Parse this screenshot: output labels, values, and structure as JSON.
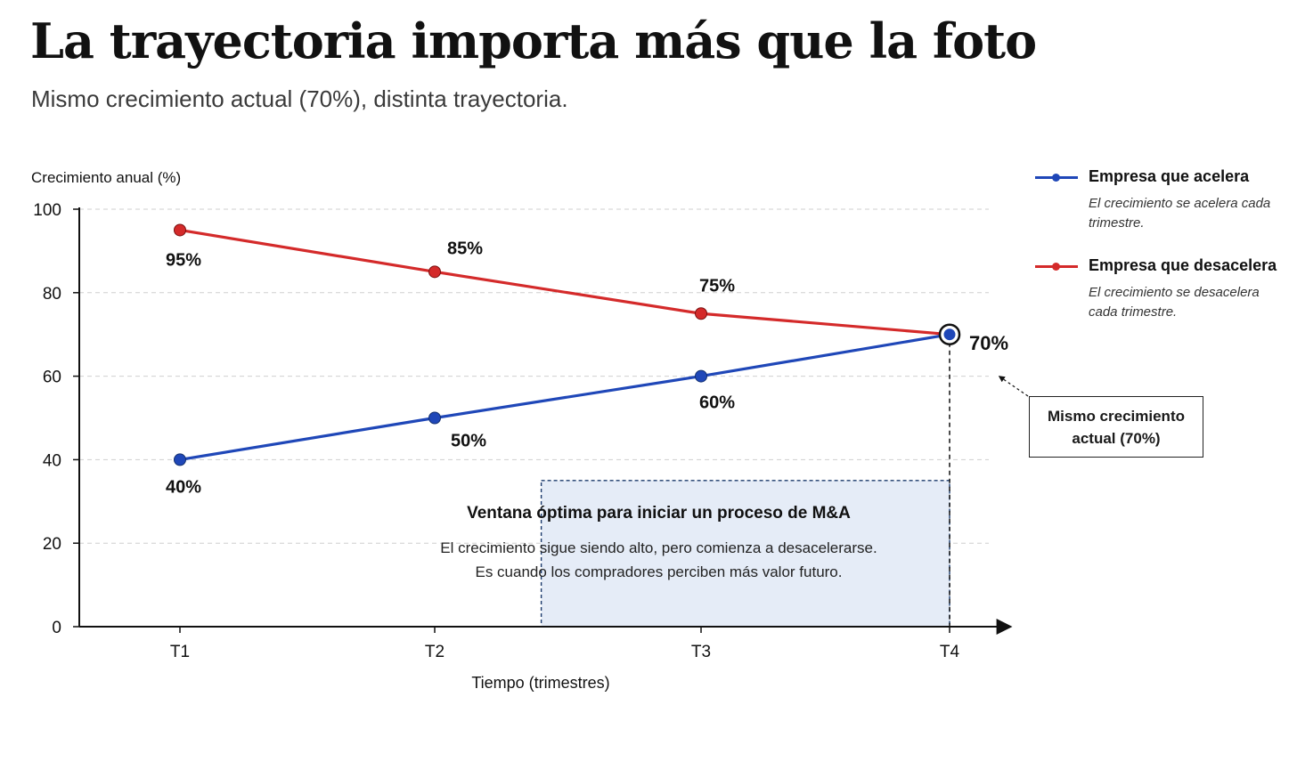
{
  "title": "La trayectoria importa más que la foto",
  "subtitle": "Mismo crecimiento actual (70%), distinta trayectoria.",
  "colors": {
    "accelerating": "#1f47b8",
    "decelerating": "#d42a2a",
    "window_fill": "#e5ecf7",
    "window_border": "#1b3a6b"
  },
  "chart_data": {
    "type": "line",
    "ylabel": "Crecimiento anual (%)",
    "xlabel": "Tiempo (trimestres)",
    "categories": [
      "T1",
      "T2",
      "T3",
      "T4"
    ],
    "ylim": [
      0,
      100
    ],
    "yticks": [
      "0",
      "20",
      "40",
      "60",
      "80",
      "100"
    ],
    "grid": "horizontal dashed",
    "series": [
      {
        "name": "Empresa que acelera",
        "description": "El crecimiento se acelera cada trimestre.",
        "color": "#1f47b8",
        "values": [
          40,
          50,
          60,
          70
        ],
        "labels": [
          "40%",
          "50%",
          "60%",
          ""
        ]
      },
      {
        "name": "Empresa que desacelera",
        "description": "El crecimiento se desacelera cada trimestre.",
        "color": "#d42a2a",
        "values": [
          95,
          85,
          75,
          70
        ],
        "labels": [
          "95%",
          "85%",
          "75%",
          ""
        ]
      }
    ],
    "endpoint_label": "70%",
    "callout": "Mismo crecimiento actual (70%)",
    "window": {
      "x_range": [
        1.4,
        3
      ],
      "y_top": 35,
      "title": "Ventana óptima para iniciar un proceso de M&A",
      "body_line1": "El crecimiento sigue siendo alto, pero comienza a desacelerarse.",
      "body_line2": "Es cuando los compradores perciben más valor futuro."
    }
  }
}
